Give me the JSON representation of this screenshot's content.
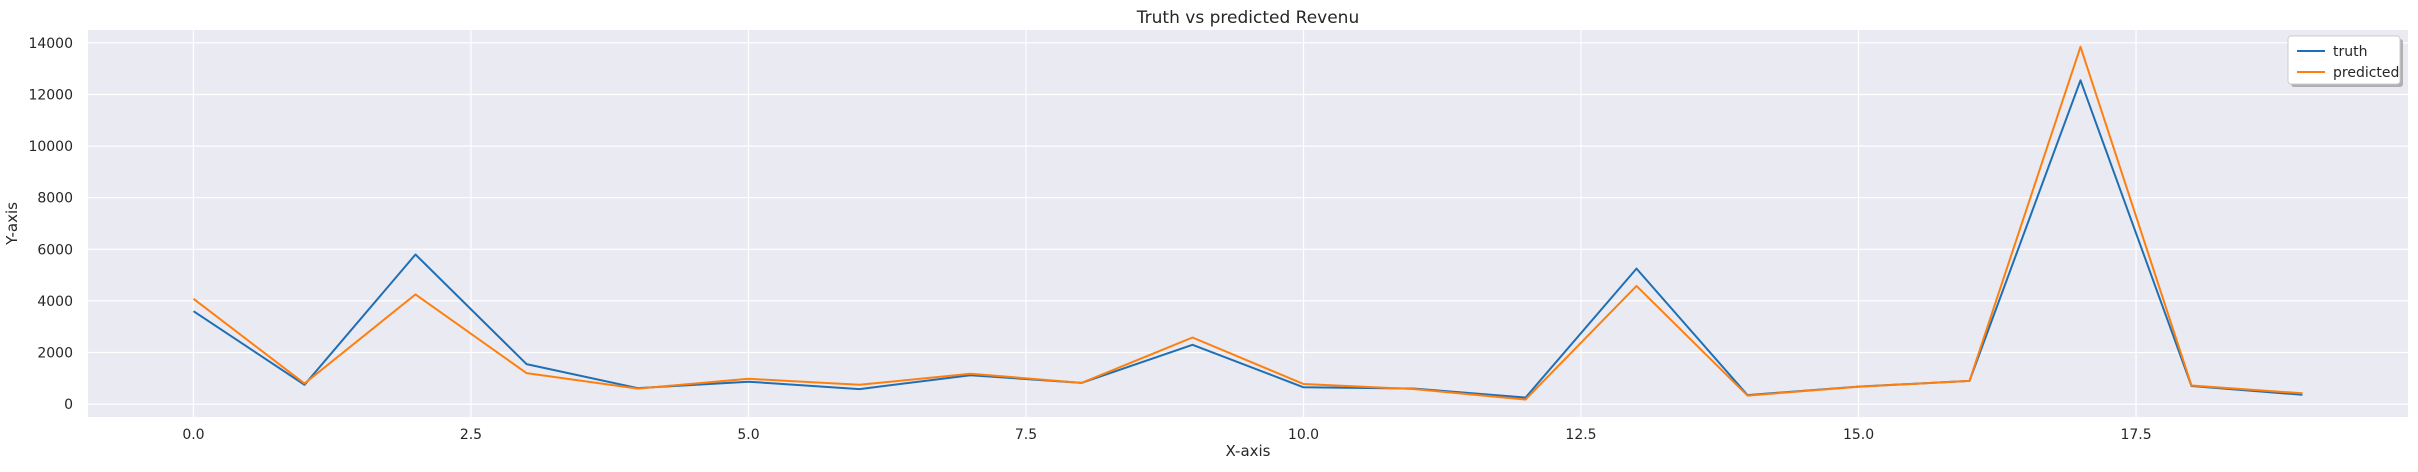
{
  "chart_data": {
    "type": "line",
    "title": "Truth vs predicted Revenu",
    "xlabel": "X-axis",
    "ylabel": "Y-axis",
    "xlim": [
      -0.95,
      19.95
    ],
    "ylim": [
      -500,
      14500
    ],
    "xticks": [
      0.0,
      2.5,
      5.0,
      7.5,
      10.0,
      12.5,
      15.0,
      17.5
    ],
    "xtick_labels": [
      "0.0",
      "2.5",
      "5.0",
      "7.5",
      "10.0",
      "12.5",
      "15.0",
      "17.5"
    ],
    "yticks": [
      0,
      2000,
      4000,
      6000,
      8000,
      10000,
      12000,
      14000
    ],
    "ytick_labels": [
      "0",
      "2000",
      "4000",
      "6000",
      "8000",
      "10000",
      "12000",
      "14000"
    ],
    "grid": true,
    "legend_position": "top-right",
    "x": [
      0,
      1,
      2,
      3,
      4,
      5,
      6,
      7,
      8,
      9,
      10,
      11,
      12,
      13,
      14,
      15,
      16,
      17,
      18,
      19
    ],
    "series": [
      {
        "name": "truth",
        "color": "#1f6fb4",
        "values": [
          3600,
          750,
          5800,
          1550,
          620,
          870,
          580,
          1120,
          820,
          2300,
          650,
          600,
          250,
          5250,
          350,
          680,
          900,
          12550,
          700,
          360
        ]
      },
      {
        "name": "predicted",
        "color": "#ff7f0e",
        "values": [
          4080,
          800,
          4250,
          1200,
          600,
          980,
          750,
          1180,
          820,
          2580,
          780,
          580,
          180,
          4580,
          330,
          670,
          900,
          13850,
          720,
          420
        ]
      }
    ],
    "background_color": "#eaeaf2",
    "grid_color": "#ffffff"
  }
}
